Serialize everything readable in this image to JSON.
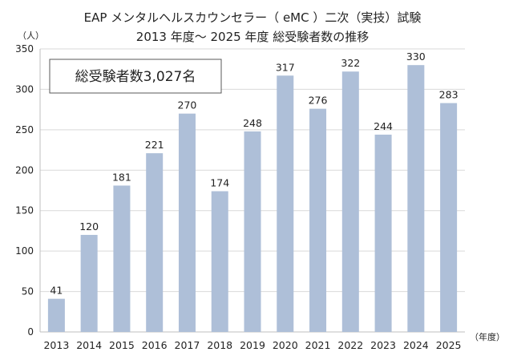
{
  "chart_data": {
    "type": "bar",
    "title": "EAP メンタルヘルスカウンセラー（ eMC ）二次（実技）試験",
    "subtitle": "2013 年度～ 2025 年度 総受験者数の推移",
    "ylabel": "（人）",
    "xlabel": "（年度）",
    "annotation": "総受験者数3,027名",
    "categories": [
      "2013",
      "2014",
      "2015",
      "2016",
      "2017",
      "2018",
      "2019",
      "2020",
      "2021",
      "2022",
      "2023",
      "2024",
      "2025"
    ],
    "values": [
      41,
      120,
      181,
      221,
      270,
      174,
      248,
      317,
      276,
      322,
      244,
      330,
      283
    ],
    "ylim": [
      0,
      350
    ],
    "yticks": [
      0,
      50,
      100,
      150,
      200,
      250,
      300,
      350
    ],
    "grid": true,
    "legend": "none",
    "colors": {
      "bar": "#aebfd8",
      "grid": "#d9d9d9"
    }
  }
}
